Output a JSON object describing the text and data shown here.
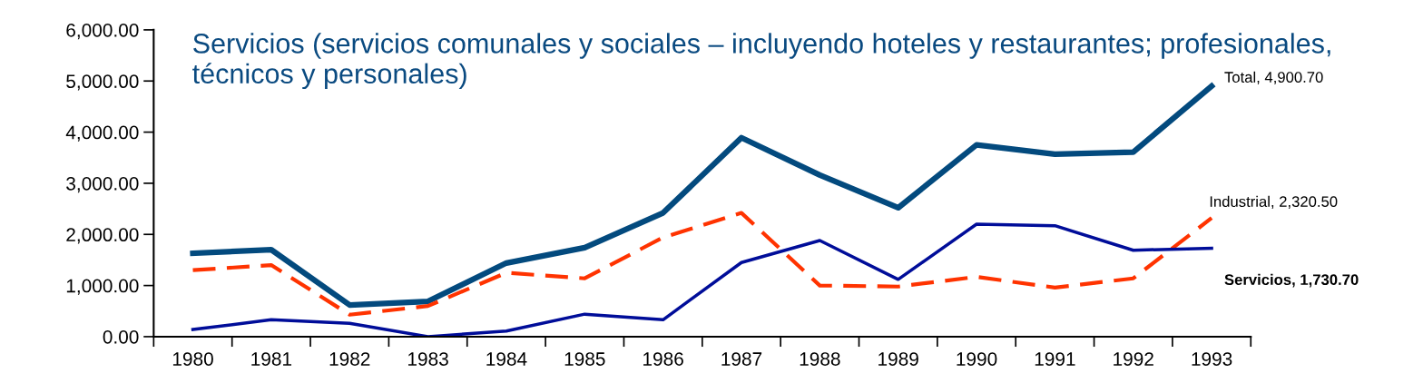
{
  "chart_data": {
    "type": "line",
    "title": "Servicios (servicios comunales y sociales – incluyendo hoteles y restaurantes; profesionales, técnicos y personales)",
    "categories": [
      "1980",
      "1981",
      "1982",
      "1983",
      "1984",
      "1985",
      "1986",
      "1987",
      "1988",
      "1989",
      "1990",
      "1991",
      "1992",
      "1993"
    ],
    "series": [
      {
        "color": "#034a7e",
        "line_style": "solid",
        "values": [
          1630,
          1700,
          620,
          690,
          1440,
          1740,
          2420,
          3890,
          3160,
          2520,
          3750,
          3570,
          3610,
          4900.7
        ]
      },
      {
        "color": "#ff3300",
        "line_style": "dashed",
        "values": [
          1300,
          1400,
          430,
          600,
          1250,
          1140,
          1940,
          2420,
          1000,
          980,
          1170,
          960,
          1140,
          2320.5
        ]
      },
      {
        "color": "#000d99",
        "line_style": "solid",
        "values": [
          140,
          330,
          260,
          0,
          110,
          440,
          330,
          1450,
          1880,
          1120,
          2200,
          2170,
          1690,
          1730.7
        ]
      }
    ],
    "ylim": [
      0,
      6000
    ],
    "yticks": [
      {
        "value": 0,
        "label": "0.00"
      },
      {
        "value": 1000,
        "label": "1,000.00"
      },
      {
        "value": 2000,
        "label": "2,000.00"
      },
      {
        "value": 3000,
        "label": "3,000.00"
      },
      {
        "value": 4000,
        "label": "4,000.00"
      },
      {
        "value": 5000,
        "label": "5,000.00"
      },
      {
        "value": 6000,
        "label": "6,000.00"
      }
    ],
    "annotations": [
      {
        "text": "Total, 4,900.70",
        "x": "1993",
        "y": 4900.7
      },
      {
        "text": "Industrial, 2,320.50",
        "x": "1993",
        "y": 2320.5
      },
      {
        "text": "Servicios, 1,730.70",
        "x": "1993",
        "y": 1730.7
      }
    ],
    "grid": false,
    "legend": false,
    "marker": "none"
  }
}
